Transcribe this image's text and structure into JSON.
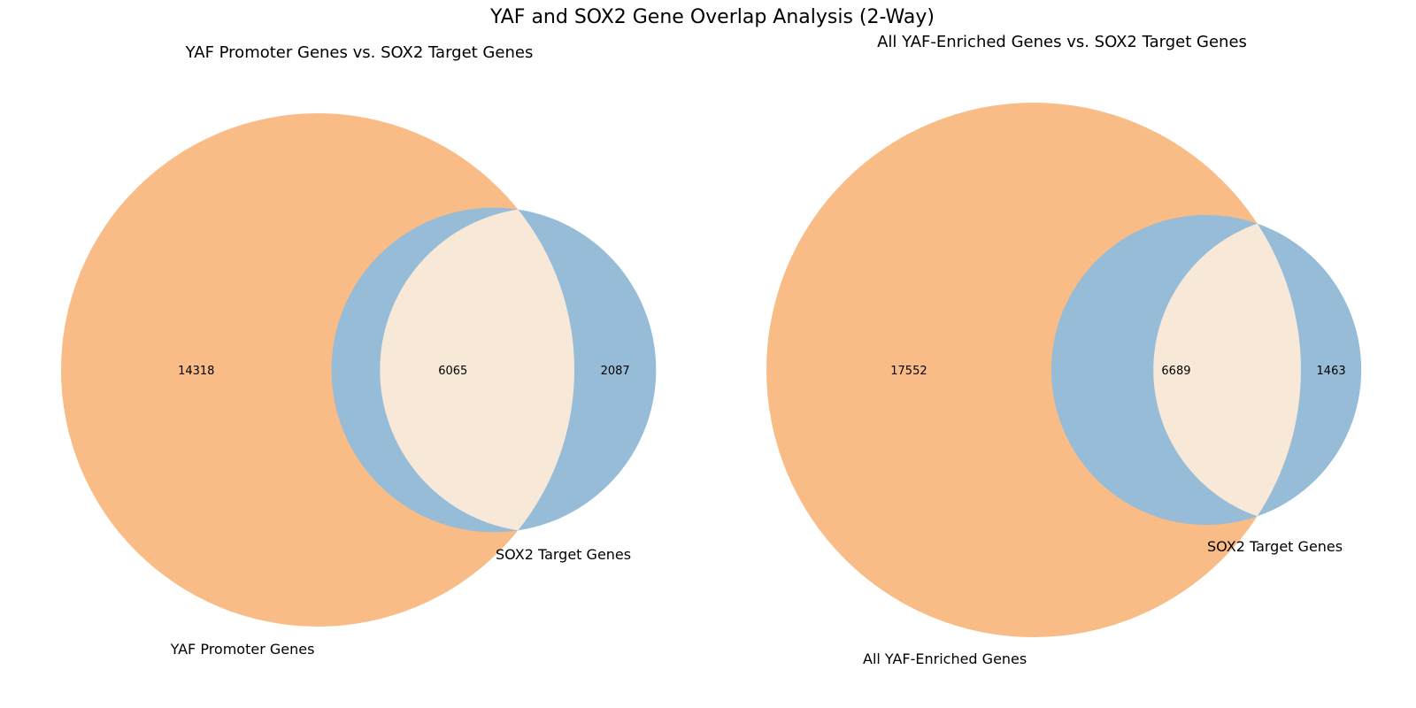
{
  "figure": {
    "title": "YAF and SOX2 Gene Overlap Analysis (2-Way)"
  },
  "colors": {
    "set_a": "#f9bc86",
    "set_b": "#96bcd8",
    "overlap": "#f7e8d7",
    "background": "#ffffff",
    "text": "#000000"
  },
  "chart_data": [
    {
      "type": "venn2",
      "title": "YAF Promoter Genes vs. SOX2 Target Genes",
      "sets": [
        {
          "label": "YAF Promoter Genes",
          "only": 14318
        },
        {
          "label": "SOX2 Target Genes",
          "only": 2087
        }
      ],
      "overlap": 6065
    },
    {
      "type": "venn2",
      "title": "All YAF-Enriched Genes vs. SOX2 Target Genes",
      "sets": [
        {
          "label": "All YAF-Enriched Genes",
          "only": 17552
        },
        {
          "label": "SOX2 Target Genes",
          "only": 1463
        }
      ],
      "overlap": 6689
    }
  ]
}
